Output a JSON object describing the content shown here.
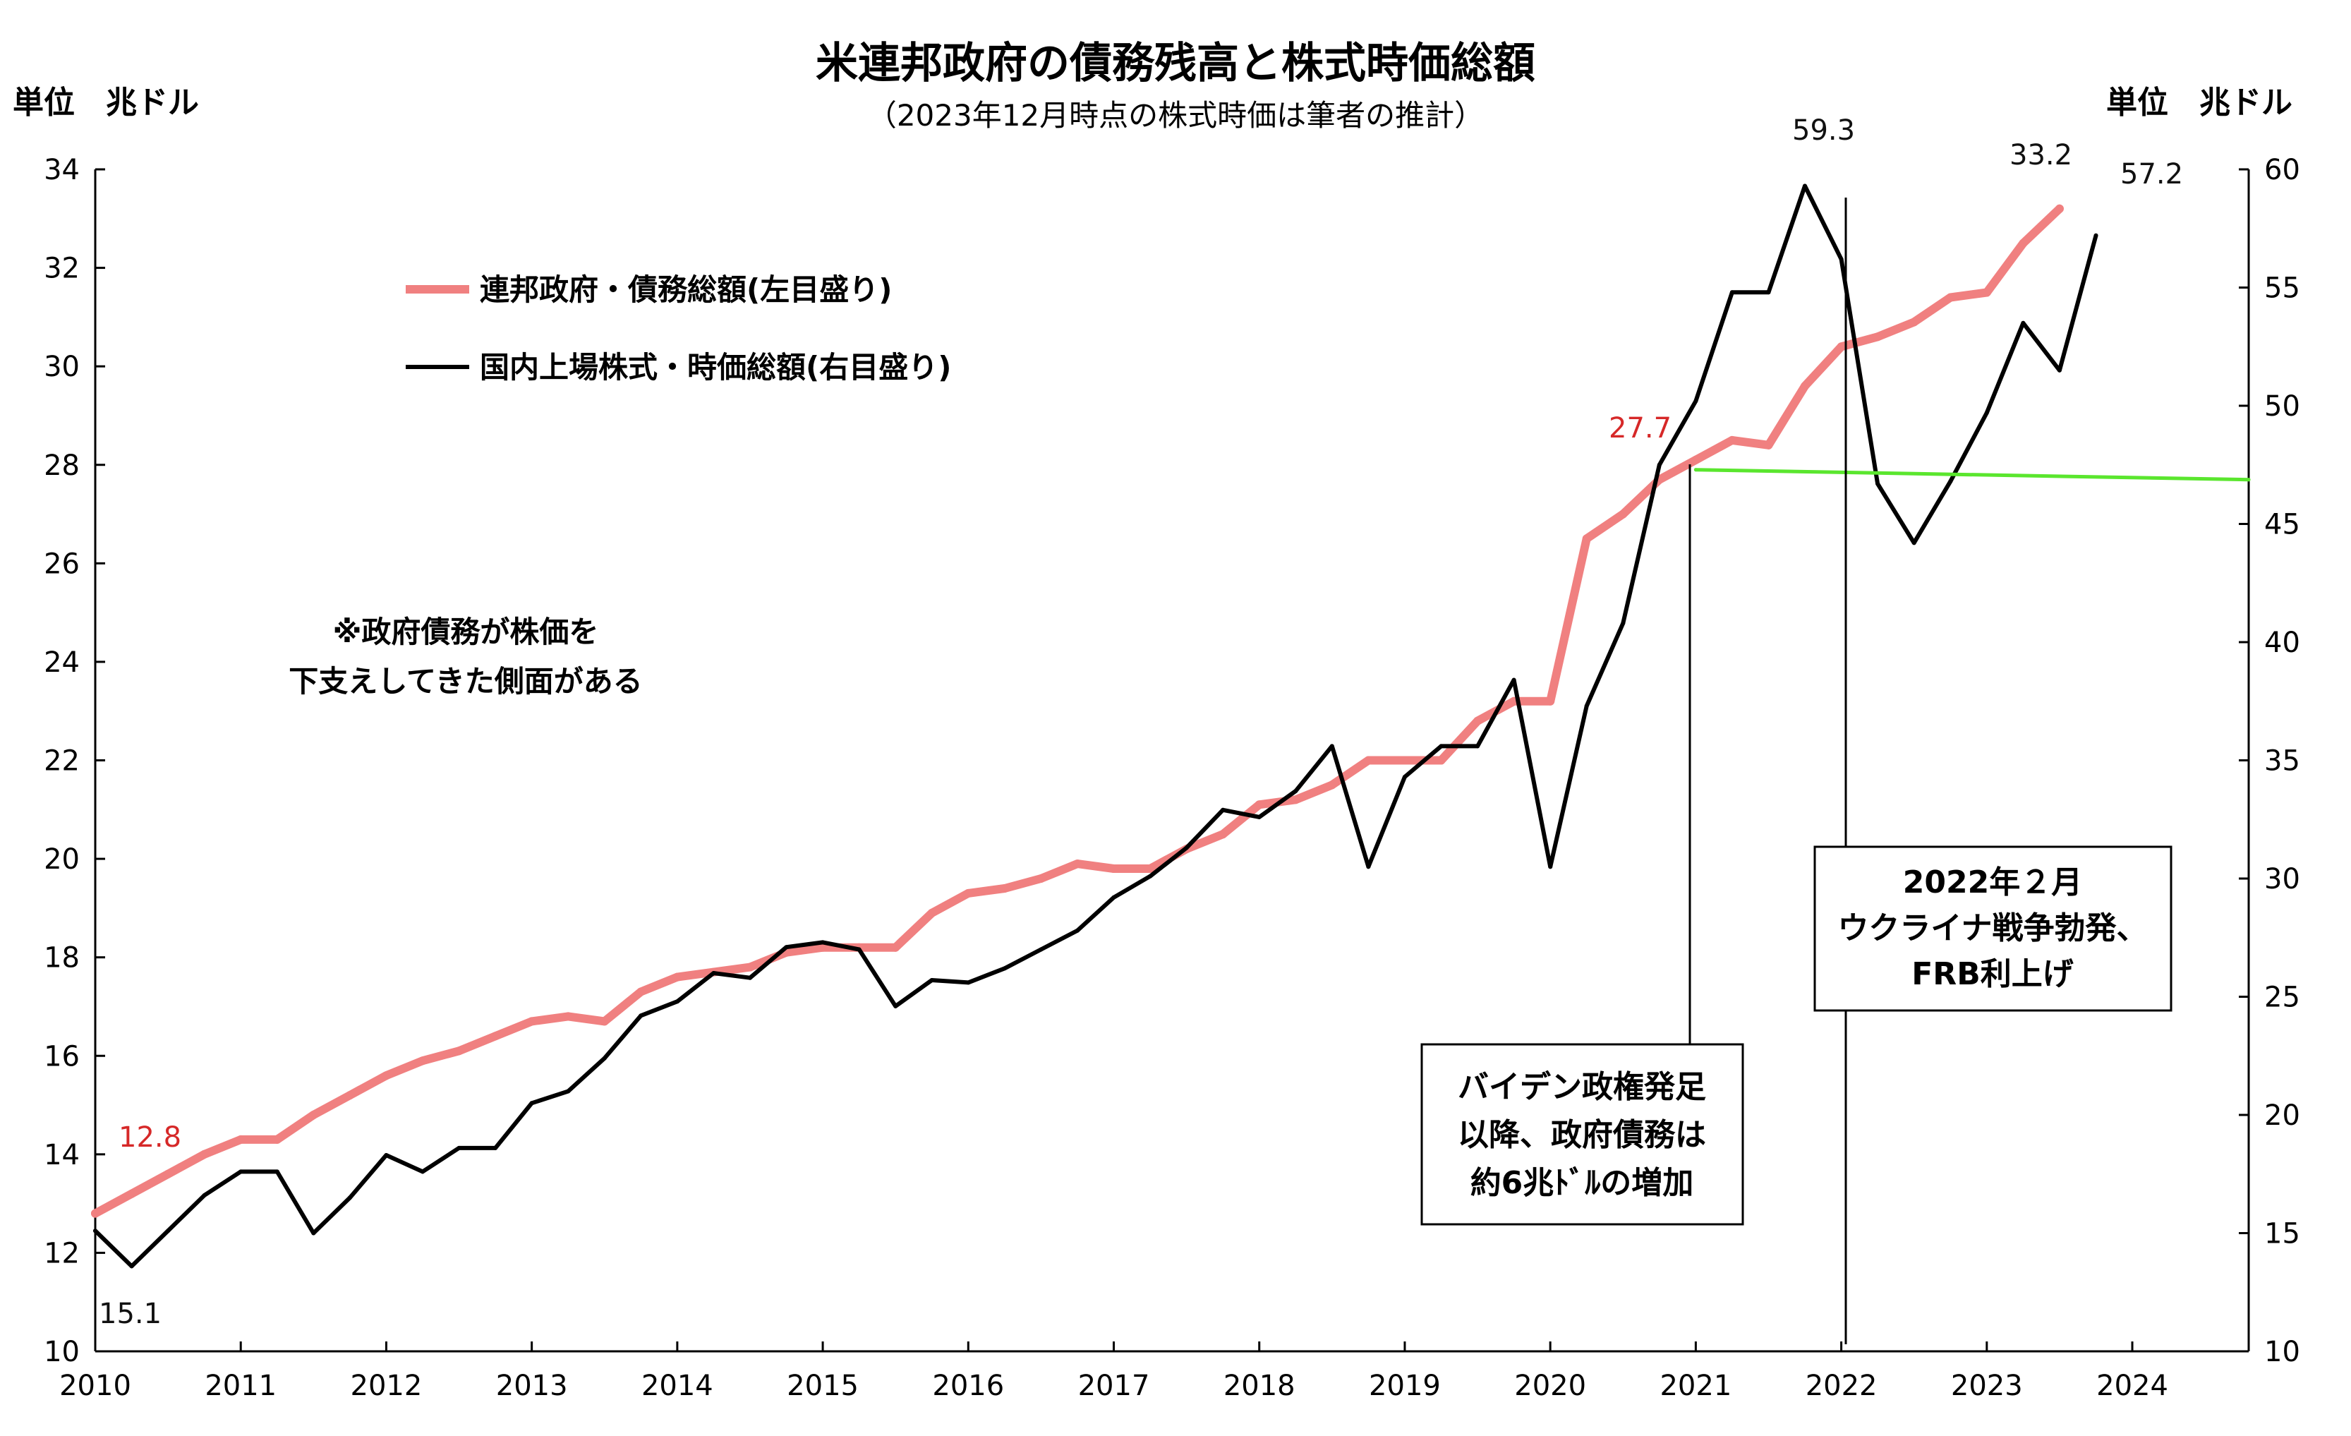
{
  "title": "米連邦政府の債務残高と株式時価総額",
  "subtitle": "（2023年12月時点の株式時価は筆者の推計）",
  "unit_left": "単位　兆ドル",
  "unit_right": "単位　兆ドル",
  "legend": [
    {
      "label": "連邦政府・債務総額(左目盛り)",
      "color": "#f08080"
    },
    {
      "label": "国内上場株式・時価総額(右目盛り)",
      "color": "#000000"
    }
  ],
  "note": [
    "※政府債務が株価を",
    "下支えしてきた側面がある"
  ],
  "box_biden": [
    "バイデン政権発足",
    "以降、政府債務は",
    "約6兆ﾄﾞﾙの増加"
  ],
  "box_ukraine": [
    "2022年２月",
    "ウクライナ戦争勃発、",
    "FRB利上げ"
  ],
  "value_labels": {
    "debt_start": "12.8",
    "stock_start": "15.1",
    "debt_2021": "27.7",
    "stock_peak": "59.3",
    "debt_end": "33.2",
    "stock_end": "57.2"
  },
  "colors": {
    "debt": "#f08080",
    "stock": "#000000",
    "flat": "#5ae62e",
    "value_red": "#d62828"
  },
  "chart_data": {
    "type": "line",
    "title": "米連邦政府の債務残高と株式時価総額",
    "x_ticks": [
      "2010",
      "2011",
      "2012",
      "2013",
      "2014",
      "2015",
      "2016",
      "2017",
      "2018",
      "2019",
      "2020",
      "2021",
      "2022",
      "2023",
      "2024"
    ],
    "xlim": [
      2010,
      2024.8
    ],
    "y_left": {
      "label": "単位　兆ドル",
      "lim": [
        10,
        34
      ],
      "ticks": [
        10,
        12,
        14,
        16,
        18,
        20,
        22,
        24,
        26,
        28,
        30,
        32,
        34
      ]
    },
    "y_right": {
      "label": "単位　兆ドル",
      "lim": [
        10,
        60
      ],
      "ticks": [
        10,
        15,
        20,
        25,
        30,
        35,
        40,
        45,
        50,
        55,
        60
      ]
    },
    "x": [
      2010.0,
      2010.25,
      2010.5,
      2010.75,
      2011.0,
      2011.25,
      2011.5,
      2011.75,
      2012.0,
      2012.25,
      2012.5,
      2012.75,
      2013.0,
      2013.25,
      2013.5,
      2013.75,
      2014.0,
      2014.25,
      2014.5,
      2014.75,
      2015.0,
      2015.25,
      2015.5,
      2015.75,
      2016.0,
      2016.25,
      2016.5,
      2016.75,
      2017.0,
      2017.25,
      2017.5,
      2017.75,
      2018.0,
      2018.25,
      2018.5,
      2018.75,
      2019.0,
      2019.25,
      2019.5,
      2019.75,
      2020.0,
      2020.25,
      2020.5,
      2020.75,
      2021.0,
      2021.25,
      2021.5,
      2021.75,
      2022.0,
      2022.25,
      2022.5,
      2022.75,
      2023.0,
      2023.25,
      2023.5,
      2023.75
    ],
    "series": [
      {
        "name": "連邦政府・債務総額(左目盛り)",
        "axis": "left",
        "values": [
          12.8,
          13.2,
          13.6,
          14.0,
          14.3,
          14.3,
          14.8,
          15.2,
          15.6,
          15.9,
          16.1,
          16.4,
          16.7,
          16.8,
          16.7,
          17.3,
          17.6,
          17.7,
          17.8,
          18.1,
          18.2,
          18.2,
          18.2,
          18.9,
          19.3,
          19.4,
          19.6,
          19.9,
          19.8,
          19.8,
          20.2,
          20.5,
          21.1,
          21.2,
          21.5,
          22.0,
          22.0,
          22.0,
          22.8,
          23.2,
          23.2,
          26.5,
          27.0,
          27.7,
          28.1,
          28.5,
          28.4,
          29.6,
          30.4,
          30.6,
          30.9,
          31.4,
          31.5,
          32.5,
          33.2,
          null
        ]
      },
      {
        "name": "国内上場株式・時価総額(右目盛り)",
        "axis": "right",
        "values": [
          15.1,
          13.6,
          15.1,
          16.6,
          17.6,
          17.6,
          15.0,
          16.5,
          18.3,
          17.6,
          18.6,
          18.6,
          20.5,
          21.0,
          22.4,
          24.2,
          24.8,
          26.0,
          25.8,
          27.1,
          27.3,
          27.0,
          24.6,
          25.7,
          25.6,
          26.2,
          27.0,
          27.8,
          29.2,
          30.1,
          31.3,
          32.9,
          32.6,
          33.7,
          35.6,
          30.5,
          34.3,
          35.6,
          35.6,
          38.4,
          30.5,
          37.3,
          40.8,
          47.5,
          50.2,
          54.8,
          54.8,
          59.3,
          56.2,
          46.7,
          44.2,
          46.8,
          49.7,
          53.5,
          51.5,
          57.2
        ]
      },
      {
        "name": "",
        "axis": "left",
        "style": "reference",
        "x": [
          2021.0,
          2024.8
        ],
        "values": [
          27.9,
          27.7
        ]
      }
    ]
  }
}
